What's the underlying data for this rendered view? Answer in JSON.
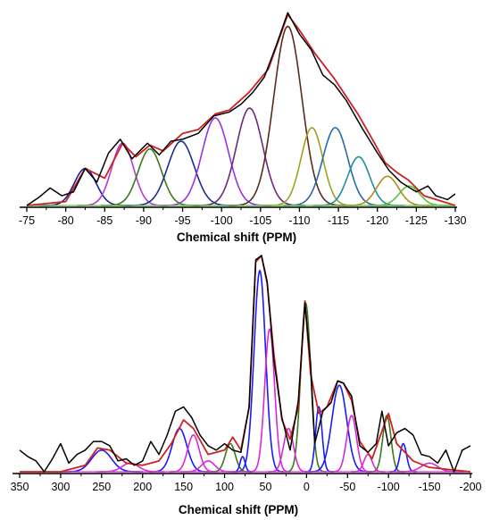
{
  "chart_data": [
    {
      "type": "line",
      "title": "",
      "xlabel": "Chemical shift (PPM)",
      "ylabel": "",
      "xlim": [
        -75,
        -130
      ],
      "x_reversed": true,
      "xticks": [
        -75,
        -80,
        -85,
        -90,
        -95,
        -100,
        -105,
        -110,
        -115,
        -120,
        -125,
        -130
      ],
      "ylim": [
        0,
        1
      ],
      "grid": false,
      "legend": "none",
      "series": [
        {
          "color": "#000000",
          "role": "experimental",
          "x": [
            -75,
            -76.5,
            -78,
            -79.5,
            -81,
            -82.5,
            -84,
            -85.5,
            -87,
            -88.5,
            -90.5,
            -92,
            -93.5,
            -95,
            -97,
            -99,
            -101,
            -102.5,
            -104,
            -105.5,
            -107,
            -108.5,
            -110,
            -111.5,
            -113,
            -114.5,
            -116,
            -118,
            -120,
            -121.5,
            -123,
            -125,
            -126.5,
            -127.5,
            -129,
            -130
          ],
          "y": [
            0.0,
            0.04,
            0.09,
            0.05,
            0.07,
            0.19,
            0.12,
            0.27,
            0.34,
            0.24,
            0.32,
            0.26,
            0.33,
            0.34,
            0.37,
            0.46,
            0.48,
            0.52,
            0.58,
            0.66,
            0.82,
            0.99,
            0.88,
            0.8,
            0.67,
            0.62,
            0.54,
            0.4,
            0.27,
            0.18,
            0.12,
            0.07,
            0.1,
            0.05,
            0.03,
            0.06
          ]
        },
        {
          "color": "#cc2222",
          "role": "fit",
          "x": [
            -75,
            -80,
            -82.5,
            -85,
            -87.3,
            -89,
            -90.8,
            -92.5,
            -95,
            -97,
            -99.2,
            -101,
            -103.5,
            -106,
            -108.5,
            -110,
            -112,
            -114.5,
            -117.5,
            -119.5,
            -121,
            -122.5,
            -124,
            -126,
            -130
          ],
          "y": [
            0.0,
            0.02,
            0.19,
            0.14,
            0.32,
            0.25,
            0.31,
            0.28,
            0.37,
            0.39,
            0.47,
            0.49,
            0.58,
            0.7,
            0.98,
            0.9,
            0.78,
            0.65,
            0.47,
            0.33,
            0.22,
            0.17,
            0.13,
            0.05,
            0.0
          ]
        },
        {
          "color": "#1f1fa0",
          "role": "component",
          "center": -82.5,
          "height": 0.19,
          "width": 1.4
        },
        {
          "color": "#b53ad9",
          "role": "component",
          "center": -87.3,
          "height": 0.32,
          "width": 1.4
        },
        {
          "color": "#3a7a1a",
          "role": "component",
          "center": -90.8,
          "height": 0.29,
          "width": 1.5
        },
        {
          "color": "#1a2f8f",
          "role": "component",
          "center": -94.8,
          "height": 0.33,
          "width": 1.7
        },
        {
          "color": "#9932e0",
          "role": "component",
          "center": -99.2,
          "height": 0.45,
          "width": 1.7
        },
        {
          "color": "#6a2a7a",
          "role": "component",
          "center": -103.6,
          "height": 0.5,
          "width": 1.7
        },
        {
          "color": "#5c2a1a",
          "role": "component",
          "center": -108.5,
          "height": 0.92,
          "width": 1.8
        },
        {
          "color": "#a0a020",
          "role": "component",
          "center": -111.6,
          "height": 0.4,
          "width": 1.4
        },
        {
          "color": "#2a6aa8",
          "role": "component",
          "center": -114.6,
          "height": 0.4,
          "width": 1.6
        },
        {
          "color": "#1f8fa0",
          "role": "component",
          "center": -117.6,
          "height": 0.25,
          "width": 1.4
        },
        {
          "color": "#b08d1a",
          "role": "component",
          "center": -121.3,
          "height": 0.15,
          "width": 1.4
        },
        {
          "color": "#5bc23a",
          "role": "component",
          "center": -124.1,
          "height": 0.1,
          "width": 1.3
        }
      ]
    },
    {
      "type": "line",
      "title": "",
      "xlabel": "Chemical shift (PPM)",
      "ylabel": "",
      "xlim": [
        350,
        -200
      ],
      "x_reversed": true,
      "xticks": [
        350,
        300,
        250,
        200,
        150,
        100,
        50,
        0,
        -50,
        -100,
        -150,
        -200
      ],
      "ylim": [
        0,
        1
      ],
      "grid": false,
      "legend": "none",
      "series": [
        {
          "color": "#000000",
          "role": "experimental",
          "x": [
            350,
            340,
            330,
            320,
            310,
            300,
            290,
            280,
            270,
            260,
            250,
            240,
            230,
            220,
            210,
            200,
            190,
            180,
            170,
            160,
            150,
            140,
            130,
            120,
            110,
            100,
            90,
            80,
            70,
            62,
            55,
            48,
            40,
            30,
            20,
            10,
            2,
            -5,
            -10,
            -20,
            -30,
            -38,
            -45,
            -55,
            -65,
            -75,
            -85,
            -92,
            -100,
            -110,
            -120,
            -130,
            -140,
            -150,
            -160,
            -170,
            -180,
            -190,
            -200
          ],
          "y": [
            0.1,
            0.07,
            0.05,
            0.0,
            0.06,
            0.13,
            0.04,
            0.08,
            0.1,
            0.14,
            0.14,
            0.12,
            0.05,
            0.06,
            0.03,
            0.05,
            0.14,
            0.08,
            0.17,
            0.28,
            0.3,
            0.25,
            0.17,
            0.12,
            0.1,
            0.13,
            0.1,
            0.09,
            0.3,
            0.98,
            1.0,
            0.88,
            0.52,
            0.25,
            0.1,
            0.33,
            0.78,
            0.5,
            0.13,
            0.28,
            0.32,
            0.42,
            0.41,
            0.35,
            0.12,
            0.09,
            0.13,
            0.28,
            0.12,
            0.18,
            0.2,
            0.17,
            0.08,
            0.07,
            0.04,
            0.1,
            0.0,
            0.1,
            0.12
          ]
        },
        {
          "color": "#cc2222",
          "role": "fit",
          "x": [
            350,
            300,
            270,
            255,
            240,
            220,
            200,
            180,
            165,
            150,
            138,
            120,
            100,
            90,
            80,
            70,
            62,
            55,
            48,
            40,
            30,
            20,
            10,
            2,
            -5,
            -15,
            -25,
            -38,
            -45,
            -55,
            -65,
            -80,
            -95,
            -100,
            -110,
            -130,
            -150,
            -200
          ],
          "y": [
            0.0,
            0.0,
            0.03,
            0.11,
            0.1,
            0.04,
            0.03,
            0.05,
            0.13,
            0.24,
            0.2,
            0.08,
            0.1,
            0.16,
            0.1,
            0.3,
            0.97,
            1.0,
            0.87,
            0.55,
            0.24,
            0.15,
            0.3,
            0.79,
            0.45,
            0.27,
            0.3,
            0.42,
            0.41,
            0.33,
            0.14,
            0.06,
            0.22,
            0.27,
            0.13,
            0.05,
            0.02,
            0.0
          ]
        },
        {
          "color": "#1a1aff",
          "role": "component",
          "center": 57,
          "height": 0.93,
          "width": 7
        },
        {
          "color": "#d62ad6",
          "role": "component",
          "center": 45,
          "height": 0.66,
          "width": 6
        },
        {
          "color": "#3a7a1a",
          "role": "component",
          "center": 1,
          "height": 0.78,
          "width": 6
        },
        {
          "color": "#1a1aff",
          "role": "component",
          "center": -40,
          "height": 0.4,
          "width": 9
        },
        {
          "color": "#d62ad6",
          "role": "component",
          "center": -55,
          "height": 0.26,
          "width": 6
        },
        {
          "color": "#1a1aff",
          "role": "component",
          "center": -15,
          "height": 0.3,
          "width": 4
        },
        {
          "color": "#d62ad6",
          "role": "component",
          "center": 22,
          "height": 0.2,
          "width": 6
        },
        {
          "color": "#3a7a1a",
          "role": "component",
          "center": -98,
          "height": 0.26,
          "width": 5
        },
        {
          "color": "#1a1aff",
          "role": "component",
          "center": 155,
          "height": 0.2,
          "width": 9
        },
        {
          "color": "#d62ad6",
          "role": "component",
          "center": 138,
          "height": 0.17,
          "width": 7
        },
        {
          "color": "#3a7a1a",
          "role": "component",
          "center": 93,
          "height": 0.13,
          "width": 6
        },
        {
          "color": "#1a1aff",
          "role": "component",
          "center": 78,
          "height": 0.07,
          "width": 3
        },
        {
          "color": "#d62ad6",
          "role": "component",
          "center": 120,
          "height": 0.05,
          "width": 8
        },
        {
          "color": "#1a1aff",
          "role": "component",
          "center": 250,
          "height": 0.1,
          "width": 12
        },
        {
          "color": "#d62ad6",
          "role": "component",
          "center": 215,
          "height": 0.04,
          "width": 10
        },
        {
          "color": "#1a1aff",
          "role": "component",
          "center": -118,
          "height": 0.13,
          "width": 4
        },
        {
          "color": "#d62ad6",
          "role": "component",
          "center": -75,
          "height": 0.08,
          "width": 5
        },
        {
          "color": "#d62ad6",
          "role": "component",
          "center": -150,
          "height": 0.04,
          "width": 10
        }
      ]
    }
  ]
}
